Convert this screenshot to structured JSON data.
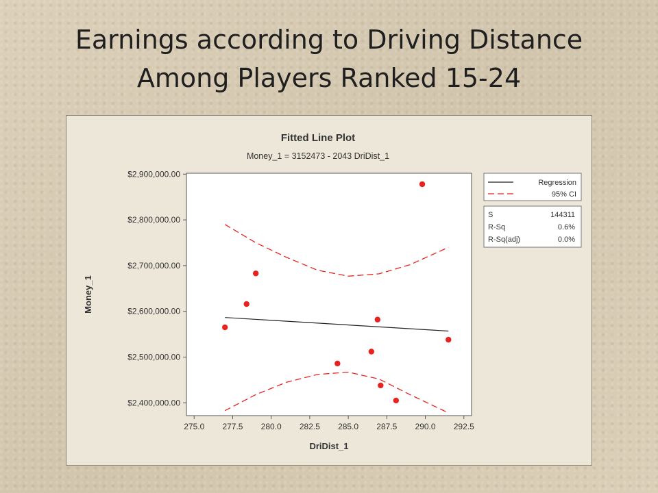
{
  "slide": {
    "title_line1": "Earnings according to Driving Distance",
    "title_line2": "Among Players Ranked 15-24"
  },
  "colors": {
    "points": "#e8231f",
    "regression": "#222222",
    "ci": "#e8231f",
    "panel": "#ece7d9",
    "plot_area": "#ffffff"
  },
  "chart_data": {
    "type": "scatter",
    "title": "Fitted Line Plot",
    "subtitle": "Money_1 = 3152473 - 2043 DriDist_1",
    "xlabel": "DriDist_1",
    "ylabel": "Money_1",
    "xlim": [
      274.5,
      293.0
    ],
    "ylim": [
      2372000,
      2902000
    ],
    "x_ticks": [
      275.0,
      277.5,
      280.0,
      282.5,
      285.0,
      287.5,
      290.0,
      292.5
    ],
    "x_tick_labels": [
      "275.0",
      "277.5",
      "280.0",
      "282.5",
      "285.0",
      "287.5",
      "290.0",
      "292.5"
    ],
    "y_ticks": [
      2400000,
      2500000,
      2600000,
      2700000,
      2800000,
      2900000
    ],
    "y_tick_labels": [
      "$2,400,000.00",
      "$2,500,000.00",
      "$2,600,000.00",
      "$2,700,000.00",
      "$2,800,000.00",
      "$2,900,000.00"
    ],
    "points": [
      {
        "x": 277.0,
        "y": 2565000
      },
      {
        "x": 278.4,
        "y": 2616000
      },
      {
        "x": 279.0,
        "y": 2683000
      },
      {
        "x": 284.3,
        "y": 2486000
      },
      {
        "x": 286.5,
        "y": 2512000
      },
      {
        "x": 286.9,
        "y": 2582000
      },
      {
        "x": 287.1,
        "y": 2438000
      },
      {
        "x": 288.1,
        "y": 2405000
      },
      {
        "x": 289.8,
        "y": 2878000
      },
      {
        "x": 291.5,
        "y": 2538000
      }
    ],
    "regression": {
      "intercept": 3152473,
      "slope": -2043,
      "x_range": [
        277.0,
        291.5
      ]
    },
    "ci_upper": [
      [
        277.0,
        2790000
      ],
      [
        279.0,
        2750000
      ],
      [
        281.0,
        2718000
      ],
      [
        283.0,
        2690000
      ],
      [
        285.0,
        2677000
      ],
      [
        287.0,
        2682000
      ],
      [
        289.0,
        2702000
      ],
      [
        291.5,
        2740000
      ]
    ],
    "ci_lower": [
      [
        277.0,
        2383000
      ],
      [
        279.0,
        2418000
      ],
      [
        281.0,
        2445000
      ],
      [
        283.0,
        2462000
      ],
      [
        285.0,
        2467000
      ],
      [
        287.0,
        2452000
      ],
      [
        289.0,
        2418000
      ],
      [
        291.5,
        2378000
      ]
    ],
    "legend": {
      "position": "right",
      "entries": [
        {
          "label": "Regression",
          "style": "solid"
        },
        {
          "label": "95% CI",
          "style": "dashed"
        }
      ]
    },
    "stats": [
      {
        "label": "S",
        "value": "144311"
      },
      {
        "label": "R-Sq",
        "value": "0.6%"
      },
      {
        "label": "R-Sq(adj)",
        "value": "0.0%"
      }
    ],
    "grid": false
  }
}
